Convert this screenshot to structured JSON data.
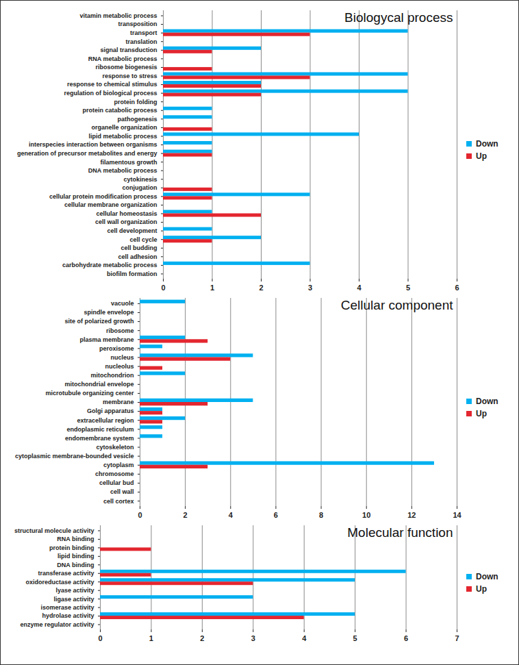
{
  "chart_data": [
    {
      "type": "bar",
      "orientation": "horizontal",
      "title": "Biologycal process",
      "categories": [
        "vitamin metabolic process",
        "transposition",
        "transport",
        "translation",
        "signal transduction",
        "RNA metabolic process",
        "ribosome biogenesis",
        "response to stress",
        "response to chemical stimulus",
        "regulation of biological process",
        "protein folding",
        "protein catabolic process",
        "pathogenesis",
        "organelle organization",
        "lipid metabolic process",
        "interspecies interaction between organisms",
        "generation of precursor metabolites and energy",
        "filamentous growth",
        "DNA metabolic process",
        "cytokinesis",
        "conjugation",
        "cellular protein modification process",
        "cellular membrane organization",
        "cellular homeostasis",
        "cell wall organization",
        "cell development",
        "cell cycle",
        "cell budding",
        "cell adhesion",
        "carbohydrate metabolic process",
        "biofilm formation"
      ],
      "series": [
        {
          "name": "Down",
          "color": "#00B0F0",
          "values": [
            0,
            0,
            5,
            0,
            2,
            0,
            0,
            5,
            2,
            5,
            0,
            1,
            1,
            0,
            4,
            1,
            1,
            0,
            0,
            0,
            0,
            3,
            0,
            1,
            0,
            1,
            2,
            0,
            0,
            3,
            0
          ]
        },
        {
          "name": "Up",
          "color": "#E3262F",
          "values": [
            0,
            0,
            3,
            0,
            1,
            0,
            1,
            3,
            2,
            2,
            0,
            0,
            0,
            1,
            0,
            0,
            1,
            0,
            0,
            0,
            1,
            1,
            0,
            2,
            0,
            0,
            1,
            0,
            0,
            0,
            0
          ]
        }
      ],
      "xlim": [
        0,
        6
      ],
      "xticks": [
        0,
        1,
        2,
        3,
        4,
        5,
        6
      ],
      "grid": true,
      "legend": "right"
    },
    {
      "type": "bar",
      "orientation": "horizontal",
      "title": "Cellular component",
      "categories": [
        "vacuole",
        "spindle envelope",
        "site of polarized growth",
        "ribosome",
        "plasma membrane",
        "peroxisome",
        "nucleus",
        "nucleolus",
        "mitochondrion",
        "mitochondrial envelope",
        "microtubule organizing center",
        "membrane",
        "Golgi apparatus",
        "extracellular region",
        "endoplasmic reticulum",
        "endomembrane system",
        "cytoskeleton",
        "cytoplasmic membrane-bounded vesicle",
        "cytoplasm",
        "chromosome",
        "cellular bud",
        "cell wall",
        "cell cortex"
      ],
      "series": [
        {
          "name": "Down",
          "color": "#00B0F0",
          "values": [
            2,
            0,
            0,
            0,
            2,
            1,
            5,
            0,
            2,
            0,
            0,
            5,
            1,
            2,
            1,
            1,
            0,
            0,
            13,
            0,
            0,
            0,
            0
          ]
        },
        {
          "name": "Up",
          "color": "#E3262F",
          "values": [
            0,
            0,
            0,
            0,
            3,
            0,
            4,
            1,
            0,
            0,
            0,
            3,
            1,
            1,
            0,
            0,
            0,
            0,
            3,
            0,
            0,
            0,
            0
          ]
        }
      ],
      "xlim": [
        0,
        14
      ],
      "xticks": [
        0,
        2,
        4,
        6,
        8,
        10,
        12,
        14
      ],
      "grid": true,
      "legend": "right"
    },
    {
      "type": "bar",
      "orientation": "horizontal",
      "title": "Molecular function",
      "categories": [
        "structural molecule activity",
        "RNA binding",
        "protein binding",
        "lipid binding",
        "DNA binding",
        "transferase activity",
        "oxidoreductase activity",
        "lyase activity",
        "ligase activity",
        "isomerase activity",
        "hydrolase activity",
        "enzyme regulator activity"
      ],
      "series": [
        {
          "name": "Down",
          "color": "#00B0F0",
          "values": [
            0,
            0,
            0,
            0,
            0,
            6,
            5,
            0,
            3,
            0,
            5,
            0
          ]
        },
        {
          "name": "Up",
          "color": "#E3262F",
          "values": [
            0,
            0,
            1,
            0,
            0,
            1,
            3,
            0,
            0,
            0,
            4,
            0
          ]
        }
      ],
      "xlim": [
        0,
        7
      ],
      "xticks": [
        0,
        1,
        2,
        3,
        4,
        5,
        6,
        7
      ],
      "grid": true,
      "legend": "right"
    }
  ]
}
